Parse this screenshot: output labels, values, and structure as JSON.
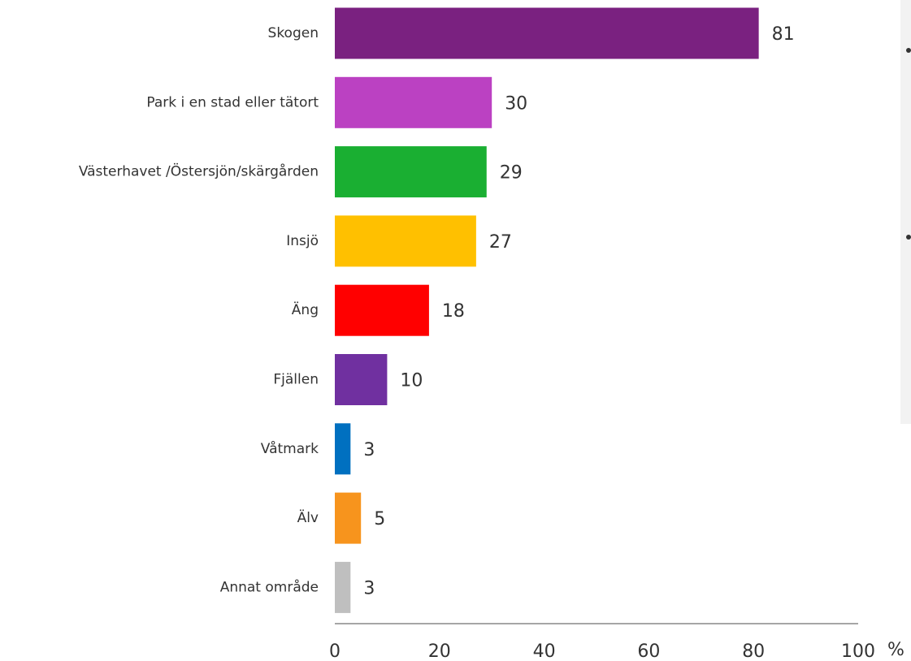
{
  "chart_data": {
    "type": "bar",
    "orientation": "horizontal",
    "categories": [
      "Skogen",
      "Park i en stad eller tätort",
      "Västerhavet /Östersjön/skärgården",
      "Insjö",
      "Äng",
      "Fjällen",
      "Våtmark",
      "Älv",
      "Annat område"
    ],
    "values": [
      81,
      30,
      29,
      27,
      18,
      10,
      3,
      5,
      3
    ],
    "colors": [
      "#7a2180",
      "#bb41c2",
      "#1aaf32",
      "#ffc000",
      "#ff0000",
      "#7030a0",
      "#0070c0",
      "#f7941d",
      "#bfbfbf"
    ],
    "xlim": [
      0,
      100
    ],
    "xticks": [
      0,
      20,
      40,
      60,
      80,
      100
    ],
    "xlabel": "%",
    "grid": false
  }
}
